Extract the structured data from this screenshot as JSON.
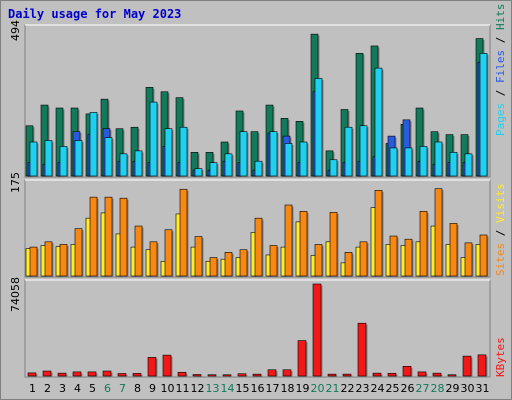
{
  "title": "Daily usage for May 2023",
  "colors": {
    "background": "#c0c0c0",
    "plot_bg": "#c0c0c0",
    "hits": "#127a5a",
    "files": "#2a5ae0",
    "pages": "#20d0f0",
    "visits": "#f88812",
    "sites": "#ffec2a",
    "kbytes": "#f21818",
    "weekend_day": "#127a5a",
    "weekday_day": "#000000"
  },
  "axis_max_labels": {
    "top": "494",
    "middle": "175",
    "bottom": "74058"
  },
  "legend": {
    "top": {
      "pages": "Pages",
      "sep1": " / ",
      "files": "Files",
      "sep2": " / ",
      "hits": "Hits"
    },
    "middle": {
      "sites": "Sites",
      "sep": " / ",
      "visits": "Visits"
    },
    "bottom": {
      "kbytes": "KBytes"
    }
  },
  "chart_data": [
    {
      "type": "bar",
      "panel": "top",
      "categories": [
        "1",
        "2",
        "3",
        "4",
        "5",
        "6",
        "7",
        "8",
        "9",
        "10",
        "11",
        "12",
        "13",
        "14",
        "15",
        "16",
        "17",
        "18",
        "19",
        "20",
        "21",
        "22",
        "23",
        "24",
        "25",
        "26",
        "27",
        "28",
        "29",
        "30",
        "31"
      ],
      "ylim": [
        0,
        494
      ],
      "weekend_days": [
        "6",
        "7",
        "13",
        "14",
        "20",
        "21",
        "27",
        "28"
      ],
      "series": [
        {
          "name": "Hits",
          "values": [
            170,
            240,
            230,
            230,
            210,
            260,
            160,
            165,
            300,
            285,
            265,
            80,
            80,
            115,
            220,
            150,
            240,
            195,
            185,
            480,
            85,
            225,
            415,
            440,
            110,
            175,
            230,
            150,
            140,
            140,
            465
          ]
        },
        {
          "name": "Files",
          "values": [
            45,
            40,
            45,
            150,
            140,
            160,
            50,
            50,
            45,
            100,
            45,
            20,
            20,
            50,
            45,
            20,
            145,
            135,
            45,
            285,
            20,
            45,
            50,
            65,
            135,
            190,
            50,
            40,
            45,
            45,
            385
          ]
        },
        {
          "name": "Pages",
          "values": [
            115,
            120,
            100,
            120,
            215,
            130,
            75,
            85,
            250,
            160,
            165,
            25,
            45,
            75,
            150,
            50,
            150,
            110,
            115,
            330,
            55,
            165,
            170,
            365,
            95,
            95,
            100,
            115,
            80,
            75,
            415
          ]
        }
      ]
    },
    {
      "type": "bar",
      "panel": "middle",
      "categories": [
        "1",
        "2",
        "3",
        "4",
        "5",
        "6",
        "7",
        "8",
        "9",
        "10",
        "11",
        "12",
        "13",
        "14",
        "15",
        "16",
        "17",
        "18",
        "19",
        "20",
        "21",
        "22",
        "23",
        "24",
        "25",
        "26",
        "27",
        "28",
        "29",
        "30",
        "31"
      ],
      "ylim": [
        0,
        175
      ],
      "series": [
        {
          "name": "Visits",
          "values": [
            55,
            65,
            60,
            90,
            150,
            150,
            148,
            95,
            65,
            88,
            165,
            75,
            35,
            45,
            50,
            110,
            58,
            135,
            123,
            60,
            121,
            45,
            65,
            163,
            76,
            70,
            123,
            166,
            100,
            63,
            78
          ]
        },
        {
          "name": "Sites",
          "values": [
            52,
            58,
            56,
            60,
            110,
            120,
            80,
            55,
            50,
            28,
            118,
            55,
            28,
            32,
            35,
            83,
            40,
            55,
            103,
            39,
            65,
            25,
            55,
            130,
            60,
            58,
            65,
            95,
            60,
            35,
            60
          ]
        }
      ]
    },
    {
      "type": "bar",
      "panel": "bottom",
      "categories": [
        "1",
        "2",
        "3",
        "4",
        "5",
        "6",
        "7",
        "8",
        "9",
        "10",
        "11",
        "12",
        "13",
        "14",
        "15",
        "16",
        "17",
        "18",
        "19",
        "20",
        "21",
        "22",
        "23",
        "24",
        "25",
        "26",
        "27",
        "28",
        "29",
        "30",
        "31"
      ],
      "ylim": [
        0,
        74058
      ],
      "series": [
        {
          "name": "KBytes",
          "values": [
            2500,
            4000,
            2300,
            3300,
            3300,
            4000,
            2000,
            2100,
            15000,
            16800,
            3000,
            1200,
            1000,
            1000,
            1800,
            1500,
            5000,
            5000,
            28500,
            74058,
            1500,
            1500,
            42500,
            2300,
            2200,
            7800,
            3300,
            2300,
            1000,
            16000,
            17000
          ]
        }
      ]
    }
  ]
}
